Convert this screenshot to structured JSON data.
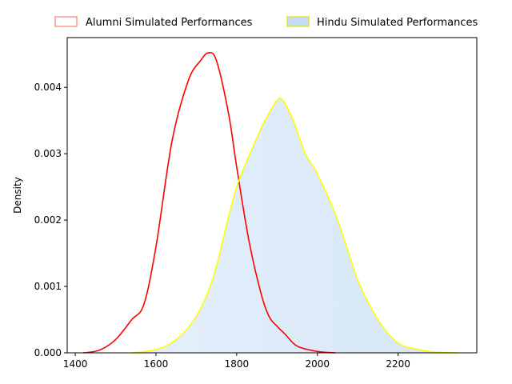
{
  "chart_data": {
    "type": "area",
    "title": "",
    "xlabel": "",
    "ylabel": "Density",
    "xlim": [
      1380,
      2395
    ],
    "ylim": [
      0,
      0.00475
    ],
    "x_ticks": [
      1400,
      1600,
      1800,
      2000,
      2200
    ],
    "x_tick_labels": [
      "1400",
      "1600",
      "1800",
      "2000",
      "2200"
    ],
    "y_ticks": [
      0,
      0.001,
      0.002,
      0.003,
      0.004
    ],
    "y_tick_labels": [
      "0.000",
      "0.001",
      "0.002",
      "0.003",
      "0.004"
    ],
    "grid": false,
    "legend_position": "top-center-outside",
    "series": [
      {
        "name": "Alumni Simulated Performances",
        "line_color": "#ff0000",
        "legend_edge_color": "#fa8072",
        "filled": false,
        "points": [
          [
            1420,
            0
          ],
          [
            1460,
            4e-05
          ],
          [
            1500,
            0.0002
          ],
          [
            1540,
            0.0005
          ],
          [
            1570,
            0.00073
          ],
          [
            1600,
            0.0016
          ],
          [
            1640,
            0.0032
          ],
          [
            1680,
            0.0041
          ],
          [
            1710,
            0.0044
          ],
          [
            1730,
            0.00452
          ],
          [
            1750,
            0.0044
          ],
          [
            1780,
            0.0036
          ],
          [
            1800,
            0.0028
          ],
          [
            1830,
            0.0017
          ],
          [
            1860,
            0.0009
          ],
          [
            1880,
            0.00055
          ],
          [
            1900,
            0.0004
          ],
          [
            1920,
            0.00028
          ],
          [
            1950,
            0.0001
          ],
          [
            2000,
            2e-05
          ],
          [
            2045,
            0
          ]
        ]
      },
      {
        "name": "Hindu Simulated Performances",
        "line_color": "#ffff00",
        "fill_color": "#c4dcf5",
        "legend_edge_color": "#e6e600",
        "filled": true,
        "points": [
          [
            1540,
            0
          ],
          [
            1600,
            5e-05
          ],
          [
            1650,
            0.0002
          ],
          [
            1700,
            0.00055
          ],
          [
            1740,
            0.0011
          ],
          [
            1770,
            0.0018
          ],
          [
            1800,
            0.0025
          ],
          [
            1840,
            0.0031
          ],
          [
            1870,
            0.0035
          ],
          [
            1900,
            0.0038
          ],
          [
            1915,
            0.0038
          ],
          [
            1940,
            0.0035
          ],
          [
            1970,
            0.003
          ],
          [
            2000,
            0.0027
          ],
          [
            2050,
            0.002
          ],
          [
            2100,
            0.0011
          ],
          [
            2150,
            0.0005
          ],
          [
            2200,
            0.00015
          ],
          [
            2250,
            5e-05
          ],
          [
            2300,
            1e-05
          ],
          [
            2350,
            0
          ]
        ]
      }
    ]
  }
}
